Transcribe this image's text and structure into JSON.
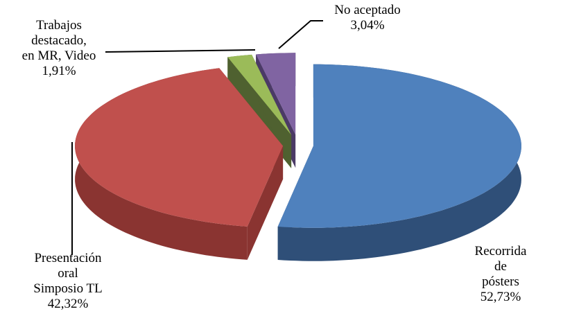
{
  "chart_data": {
    "type": "pie3d",
    "categories": [
      "Recorrida de\npósters",
      "Presentación\noral\nSimposio TL",
      "Trabajos\ndestacado,\nen MR, Video",
      "No aceptado"
    ],
    "values": [
      52.73,
      42.32,
      1.91,
      3.04
    ],
    "value_labels": [
      "52,73%",
      "42,32%",
      "1,91%",
      "3,04%"
    ],
    "colors": [
      "#4f81bd",
      "#c0504d",
      "#9bbb59",
      "#8064a2"
    ],
    "side_colors": [
      "#2f4f78",
      "#8a3431",
      "#4f6130",
      "#4b3a66"
    ]
  }
}
